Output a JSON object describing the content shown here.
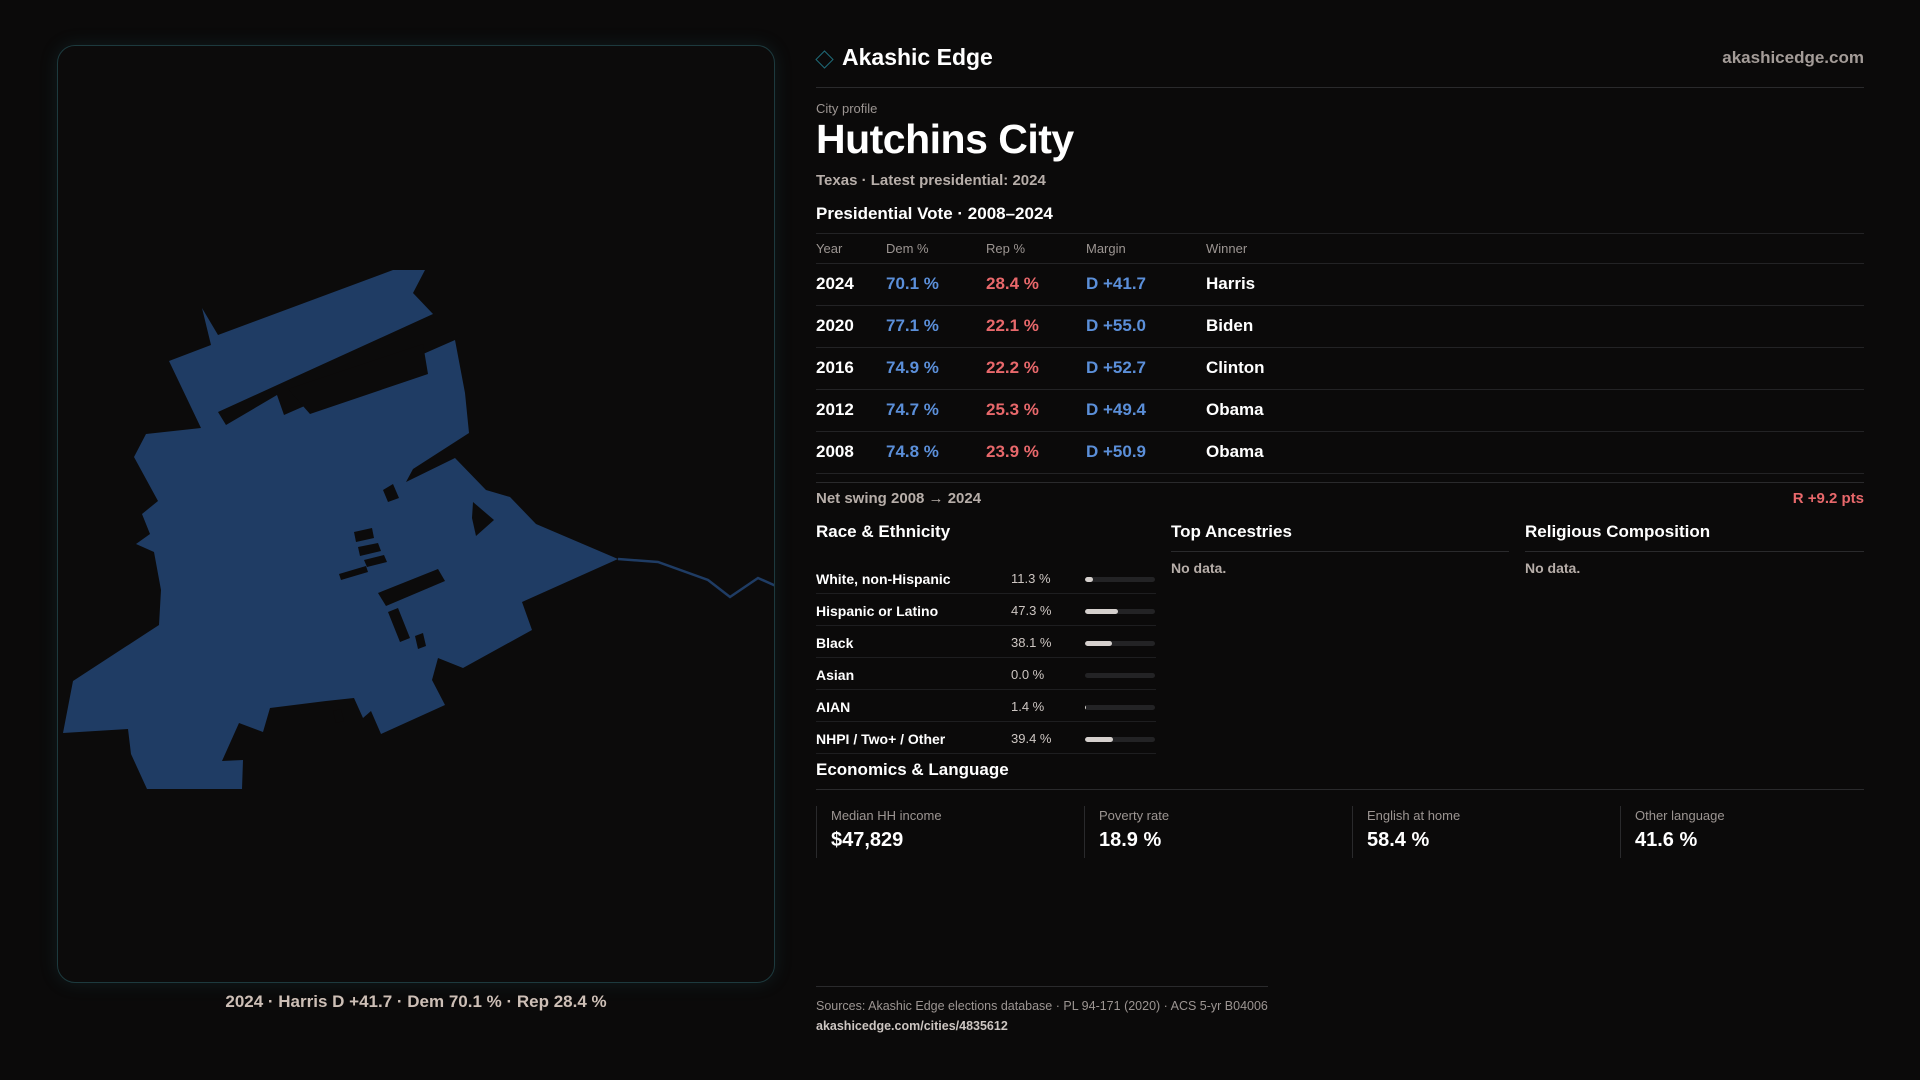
{
  "map": {
    "fill": "#1f3c64",
    "outline": "#1d3a3e",
    "caption": "2024 · Harris D +41.7 · Dem 70.1 % · Rep 28.4 %"
  },
  "brand": {
    "name": "Akashic Edge",
    "site": "akashicedge.com",
    "mark_icon": "diamond-icon"
  },
  "profile": {
    "eyebrow": "City profile",
    "title": "Hutchins City",
    "subtitle": "Texas · Latest presidential: 2024"
  },
  "vote": {
    "section_title": "Presidential Vote · 2008–2024",
    "columns": [
      "Year",
      "Dem %",
      "Rep %",
      "Margin",
      "Winner"
    ],
    "rows": [
      {
        "year": "2024",
        "dem": "70.1 %",
        "rep": "28.4 %",
        "margin": "D +41.7",
        "winner": "Harris"
      },
      {
        "year": "2020",
        "dem": "77.1 %",
        "rep": "22.1 %",
        "margin": "D +55.0",
        "winner": "Biden"
      },
      {
        "year": "2016",
        "dem": "74.9 %",
        "rep": "22.2 %",
        "margin": "D +52.7",
        "winner": "Clinton"
      },
      {
        "year": "2012",
        "dem": "74.7 %",
        "rep": "25.3 %",
        "margin": "D +49.4",
        "winner": "Obama"
      },
      {
        "year": "2008",
        "dem": "74.8 %",
        "rep": "23.9 %",
        "margin": "D +50.9",
        "winner": "Obama"
      }
    ],
    "swing_label": "Net swing 2008 → 2024",
    "swing_value": "R +9.2 pts"
  },
  "race": {
    "title": "Race & Ethnicity",
    "rows": [
      {
        "name": "White, non-Hispanic",
        "pct": "11.3 %",
        "value": 11.3
      },
      {
        "name": "Hispanic or Latino",
        "pct": "47.3 %",
        "value": 47.3
      },
      {
        "name": "Black",
        "pct": "38.1 %",
        "value": 38.1
      },
      {
        "name": "Asian",
        "pct": "0.0 %",
        "value": 0.0
      },
      {
        "name": "AIAN",
        "pct": "1.4 %",
        "value": 1.4
      },
      {
        "name": "NHPI / Two+ / Other",
        "pct": "39.4 %",
        "value": 39.4
      }
    ]
  },
  "ancestries": {
    "title": "Top Ancestries",
    "empty": "No data."
  },
  "religion": {
    "title": "Religious Composition",
    "empty": "No data."
  },
  "economics": {
    "title": "Economics & Language",
    "cards": [
      {
        "label": "Median HH income",
        "value": "$47,829"
      },
      {
        "label": "Poverty rate",
        "value": "18.9 %"
      },
      {
        "label": "English at home",
        "value": "58.4 %"
      },
      {
        "label": "Other language",
        "value": "41.6 %"
      }
    ]
  },
  "footer": {
    "sources": "Sources: Akashic Edge elections database · PL 94-171 (2020) · ACS 5-yr B04006",
    "url": "akashicedge.com/cities/4835612"
  },
  "colors": {
    "dem": "#5b8fd9",
    "rep": "#e8686b",
    "background": "#0b0a0a"
  }
}
